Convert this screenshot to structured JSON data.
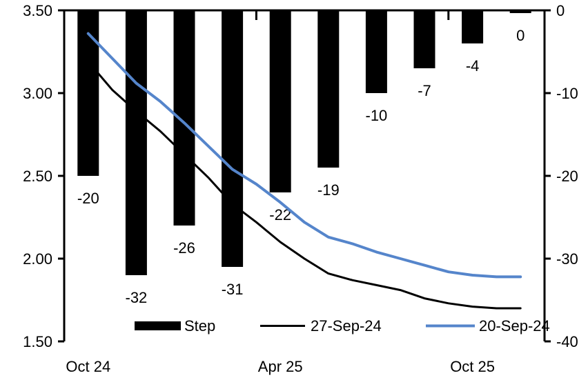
{
  "chart_data": {
    "type": "combo-bar-line",
    "title": "",
    "x_axis": {
      "tick_labels": [
        {
          "label": "Oct 24",
          "slot": 0
        },
        {
          "label": "Apr 25",
          "slot": 4
        },
        {
          "label": "Oct 25",
          "slot": 8
        }
      ],
      "boundary_tick_slots": [
        4,
        8
      ],
      "num_slots": 10
    },
    "left_axis": {
      "min": 1.5,
      "max": 3.5,
      "ticks": [
        {
          "label": "3.50",
          "value": 3.5
        },
        {
          "label": "3.00",
          "value": 3.0
        },
        {
          "label": "2.50",
          "value": 2.5
        },
        {
          "label": "2.00",
          "value": 2.0
        },
        {
          "label": "1.50",
          "value": 1.5
        }
      ]
    },
    "right_axis": {
      "min": -40,
      "max": 0,
      "ticks": [
        {
          "label": "0",
          "value": 0
        },
        {
          "label": "-10",
          "value": -10
        },
        {
          "label": "-20",
          "value": -20
        },
        {
          "label": "-30",
          "value": -30
        },
        {
          "label": "-40",
          "value": -40
        }
      ]
    },
    "bars": {
      "name": "Step",
      "axis": "right",
      "color": "#000000",
      "values": [
        -20,
        -32,
        -26,
        -31,
        -22,
        -19,
        -10,
        -7,
        -4,
        0
      ],
      "labels": [
        "-20",
        "-32",
        "-26",
        "-31",
        "-22",
        "-19",
        "-10",
        "-7",
        "-4",
        "0"
      ]
    },
    "lines": [
      {
        "name": "27-Sep-24",
        "axis": "left",
        "color": "#000000",
        "stroke_width": 3,
        "points": [
          [
            0,
            3.19
          ],
          [
            0.5,
            3.02
          ],
          [
            1,
            2.89
          ],
          [
            1.5,
            2.77
          ],
          [
            2,
            2.63
          ],
          [
            2.5,
            2.49
          ],
          [
            3,
            2.33
          ],
          [
            3.5,
            2.22
          ],
          [
            4,
            2.1
          ],
          [
            4.5,
            2.0
          ],
          [
            5,
            1.91
          ],
          [
            5.5,
            1.87
          ],
          [
            6,
            1.84
          ],
          [
            6.5,
            1.81
          ],
          [
            7,
            1.76
          ],
          [
            7.5,
            1.73
          ],
          [
            8,
            1.71
          ],
          [
            8.5,
            1.7
          ],
          [
            9,
            1.7
          ]
        ]
      },
      {
        "name": "20-Sep-24",
        "axis": "left",
        "color": "#5585CB",
        "stroke_width": 4,
        "points": [
          [
            0,
            3.36
          ],
          [
            0.5,
            3.21
          ],
          [
            1,
            3.06
          ],
          [
            1.5,
            2.95
          ],
          [
            2,
            2.82
          ],
          [
            2.5,
            2.68
          ],
          [
            3,
            2.54
          ],
          [
            3.5,
            2.45
          ],
          [
            4,
            2.34
          ],
          [
            4.5,
            2.22
          ],
          [
            5,
            2.13
          ],
          [
            5.5,
            2.09
          ],
          [
            6,
            2.04
          ],
          [
            6.5,
            2.0
          ],
          [
            7,
            1.96
          ],
          [
            7.5,
            1.92
          ],
          [
            8,
            1.9
          ],
          [
            8.5,
            1.89
          ],
          [
            9,
            1.89
          ]
        ]
      }
    ],
    "legend": [
      {
        "label": "Step",
        "swatch": "bar",
        "color": "#000000"
      },
      {
        "label": "27-Sep-24",
        "swatch": "line",
        "color": "#000000"
      },
      {
        "label": "20-Sep-24",
        "swatch": "line",
        "color": "#5585CB"
      }
    ]
  },
  "colors": {
    "axis": "#000000",
    "bar": "#000000",
    "line_black": "#000000",
    "line_blue": "#5585CB",
    "background": "#ffffff"
  }
}
